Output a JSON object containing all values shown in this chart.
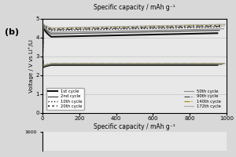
{
  "title_top": "Specific capacity / mAh g⁻¹",
  "xlabel": "Specific capacity / mAh g⁻¹",
  "ylabel": "Voltage / V vs Li⁺/LI",
  "label_b": "(b)",
  "xlim": [
    0,
    1000
  ],
  "ylim": [
    0,
    5
  ],
  "yticks": [
    0,
    1,
    2,
    3,
    4,
    5
  ],
  "xticks": [
    0,
    200,
    400,
    600,
    800,
    1000
  ],
  "bg_color": "#d8d8d8",
  "plot_bg": "#e8e8e8",
  "cycles": [
    {
      "label": "1st cycle",
      "cap": 950,
      "charge_v": 4.05,
      "disch_v": 2.55,
      "spike_up": 4.65,
      "spike_dn": 2.42,
      "style": "-",
      "color": "#111111",
      "lw": 1.5
    },
    {
      "label": "2nd cycle",
      "cap": 960,
      "charge_v": 4.2,
      "disch_v": 2.58,
      "spike_up": 4.68,
      "spike_dn": 2.44,
      "style": "-",
      "color": "#555555",
      "lw": 1.0
    },
    {
      "label": "10th cycle",
      "cap": 975,
      "charge_v": 4.38,
      "disch_v": 2.6,
      "spike_up": 4.72,
      "spike_dn": 2.46,
      "style": ":",
      "color": "#222222",
      "lw": 1.0
    },
    {
      "label": "20th cycle",
      "cap": 980,
      "charge_v": 4.48,
      "disch_v": 2.6,
      "spike_up": 4.76,
      "spike_dn": 2.47,
      "style": ":",
      "color": "#444444",
      "lw": 1.5
    },
    {
      "label": "50th cycle",
      "cap": 985,
      "charge_v": 4.28,
      "disch_v": 2.62,
      "spike_up": 4.7,
      "spike_dn": 2.48,
      "style": "-",
      "color": "#888888",
      "lw": 0.8
    },
    {
      "label": "90th cycle",
      "cap": 988,
      "charge_v": 4.42,
      "disch_v": 2.63,
      "spike_up": 4.73,
      "spike_dn": 2.49,
      "style": "-.",
      "color": "#444444",
      "lw": 0.8
    },
    {
      "label": "140th cycle",
      "cap": 990,
      "charge_v": 4.5,
      "disch_v": 2.63,
      "spike_up": 4.76,
      "spike_dn": 2.5,
      "style": "-.",
      "color": "#9a8800",
      "lw": 0.8
    },
    {
      "label": "172th cycle",
      "cap": 992,
      "charge_v": 4.52,
      "disch_v": 2.63,
      "spike_up": 4.77,
      "spike_dn": 2.5,
      "style": "-",
      "color": "#aaaaaa",
      "lw": 0.8
    }
  ],
  "legend_left": [
    {
      "label": "1st cycle",
      "style": "-",
      "color": "#111111",
      "lw": 1.5
    },
    {
      "label": "2nd cycle",
      "style": "-",
      "color": "#555555",
      "lw": 1.0
    },
    {
      "label": "10th cycle",
      "style": ":",
      "color": "#222222",
      "lw": 1.0
    },
    {
      "label": "20th cycle",
      "style": ":",
      "color": "#444444",
      "lw": 1.5
    }
  ],
  "legend_right": [
    {
      "label": "50th cycle",
      "style": "-",
      "color": "#888888",
      "lw": 0.8
    },
    {
      "label": "90th cycle",
      "style": "-.",
      "color": "#444444",
      "lw": 0.8
    },
    {
      "label": "140th cycle",
      "style": "-.",
      "color": "#9a8800",
      "lw": 0.8
    },
    {
      "label": "172th cycle",
      "style": "-",
      "color": "#aaaaaa",
      "lw": 0.8
    }
  ]
}
